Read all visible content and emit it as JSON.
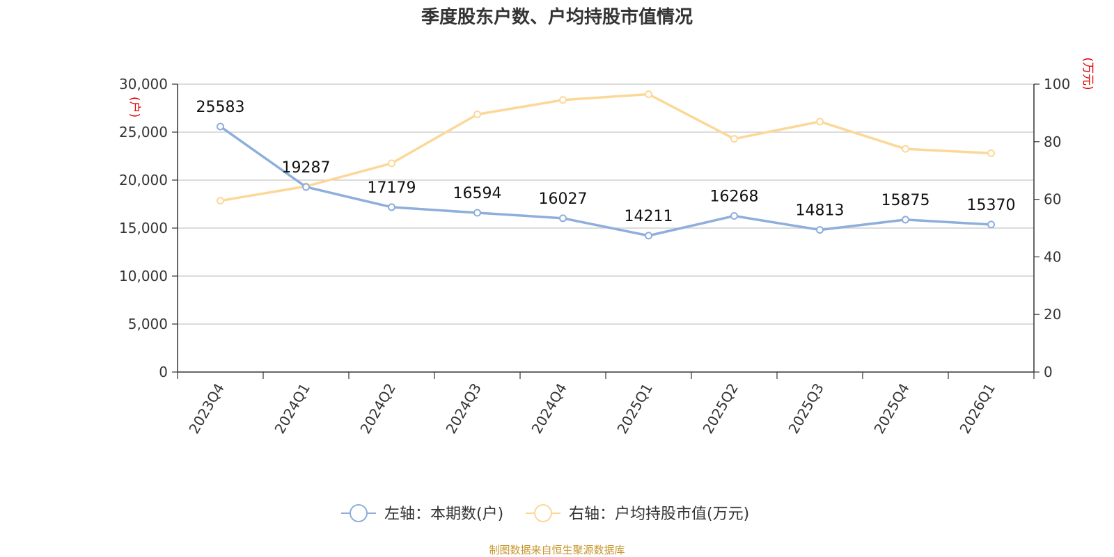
{
  "title": "季度股东户数、户均持股市值情况",
  "source": "制图数据来自恒生聚源数据库",
  "chart_data": {
    "type": "line",
    "title": "季度股东户数、户均持股市值情况",
    "categories": [
      "2023Q4",
      "2024Q1",
      "2024Q2",
      "2024Q3",
      "2024Q4",
      "2025Q1",
      "2025Q2",
      "2025Q3",
      "2025Q4",
      "2026Q1"
    ],
    "left_axis": {
      "unit_label": "(户)",
      "ylim": [
        0,
        30000
      ],
      "ticks": [
        0,
        5000,
        10000,
        15000,
        20000,
        25000,
        30000
      ],
      "tick_labels": [
        "0",
        "5,000",
        "10,000",
        "15,000",
        "20,000",
        "25,000",
        "30,000"
      ]
    },
    "right_axis": {
      "unit_label": "(万元)",
      "ylim": [
        0,
        100
      ],
      "ticks": [
        0,
        20,
        40,
        60,
        80,
        100
      ],
      "tick_labels": [
        "0",
        "20",
        "40",
        "60",
        "80",
        "100"
      ]
    },
    "series": [
      {
        "name": "左轴：本期数(户)",
        "axis": "left",
        "color": "#8eaedb",
        "show_labels": true,
        "values": [
          25583,
          19287,
          17179,
          16594,
          16027,
          14211,
          16268,
          14813,
          15875,
          15370
        ]
      },
      {
        "name": "右轴：户均持股市值(万元)",
        "axis": "right",
        "color": "#fbd898",
        "show_labels": false,
        "values": [
          59.5,
          64.5,
          72.5,
          89.5,
          94.5,
          96.5,
          81.0,
          87.0,
          77.5,
          76.0
        ]
      }
    ],
    "grid": true,
    "legend_position": "bottom-center",
    "unit_label_color": "#e00000"
  }
}
